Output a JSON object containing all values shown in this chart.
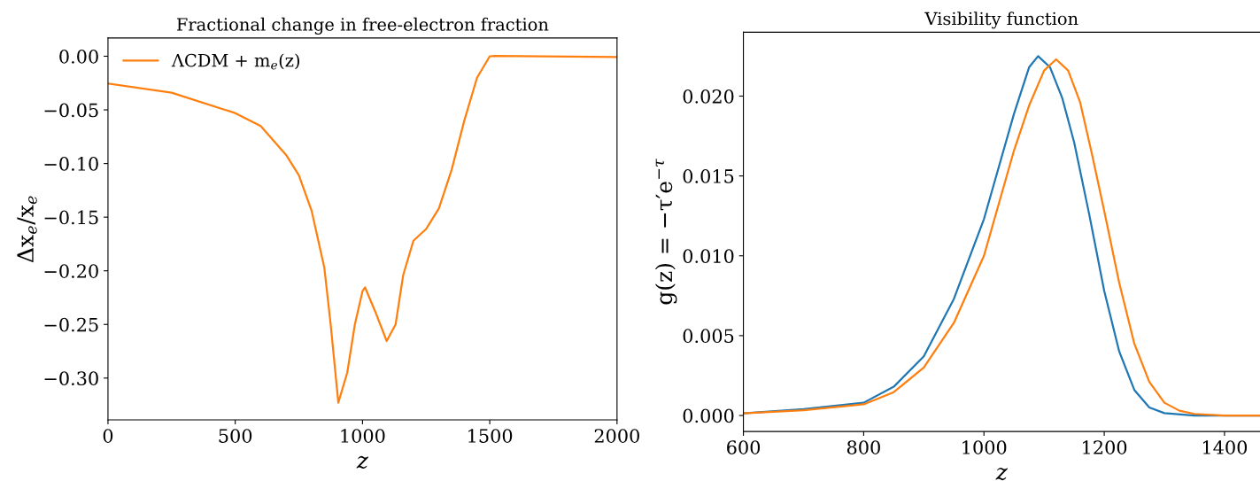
{
  "chart_data": [
    {
      "type": "line",
      "title": "Fractional change in free-electron fraction",
      "xlabel": "z",
      "ylabel": "Δx$_{e}$/x$_{e}$",
      "legend": "top left",
      "xlim": [
        0,
        2000
      ],
      "ylim": [
        -0.339,
        0.017
      ],
      "xticks": [
        0,
        500,
        1000,
        1500,
        2000
      ],
      "yticks": [
        {
          "value": 0,
          "label": "0.00"
        },
        {
          "value": -0.05,
          "label": "−0.05"
        },
        {
          "value": -0.1,
          "label": "−0.10"
        },
        {
          "value": -0.15,
          "label": "−0.15"
        },
        {
          "value": -0.2,
          "label": "−0.20"
        },
        {
          "value": -0.25,
          "label": "−0.25"
        },
        {
          "value": -0.3,
          "label": "−0.30"
        }
      ],
      "x": [
        0,
        250,
        500,
        600,
        700,
        750,
        800,
        850,
        875,
        905,
        940,
        970,
        1000,
        1010,
        1050,
        1095,
        1130,
        1160,
        1200,
        1250,
        1300,
        1350,
        1400,
        1450,
        1500,
        1520,
        2000
      ],
      "series": [
        {
          "name": "ΛCDM + m$_{e}$(z)",
          "color": "#ff7f0e",
          "values": [
            -0.0254,
            -0.034,
            -0.053,
            -0.065,
            -0.092,
            -0.111,
            -0.144,
            -0.197,
            -0.25,
            -0.323,
            -0.295,
            -0.25,
            -0.219,
            -0.2155,
            -0.238,
            -0.2655,
            -0.25,
            -0.204,
            -0.172,
            -0.161,
            -0.142,
            -0.106,
            -0.06,
            -0.02,
            0.0,
            0.0003,
            -0.0008
          ]
        }
      ]
    },
    {
      "type": "line",
      "title": "Visibility function",
      "xlabel": "z",
      "ylabel": "g(z) = −τ′e$^{−τ}$",
      "xlim": [
        600,
        1459
      ],
      "ylim": [
        -0.001,
        0.024
      ],
      "xticks": [
        600,
        800,
        1000,
        1200,
        1400
      ],
      "yticks": [
        {
          "value": 0,
          "label": "0.000"
        },
        {
          "value": 0.005,
          "label": "0.005"
        },
        {
          "value": 0.01,
          "label": "0.010"
        },
        {
          "value": 0.015,
          "label": "0.015"
        },
        {
          "value": 0.02,
          "label": "0.020"
        }
      ],
      "series": [
        {
          "color": "#1f77b4",
          "x": [
            600,
            700,
            800,
            850,
            900,
            950,
            1000,
            1025,
            1050,
            1075,
            1090,
            1110,
            1130,
            1150,
            1175,
            1200,
            1225,
            1250,
            1275,
            1300,
            1350,
            1459
          ],
          "values": [
            0.00013,
            0.0004,
            0.0008,
            0.0018,
            0.0037,
            0.0073,
            0.0123,
            0.0156,
            0.0189,
            0.0218,
            0.0225,
            0.0218,
            0.0199,
            0.0171,
            0.0126,
            0.0078,
            0.004,
            0.0016,
            0.0005,
            0.00015,
            0.0,
            0.0
          ]
        },
        {
          "color": "#ff7f0e",
          "x": [
            600,
            700,
            800,
            850,
            900,
            950,
            1000,
            1025,
            1050,
            1075,
            1100,
            1120,
            1140,
            1160,
            1180,
            1200,
            1225,
            1250,
            1275,
            1300,
            1325,
            1350,
            1400,
            1459
          ],
          "values": [
            0.00013,
            0.00033,
            0.0007,
            0.00146,
            0.003,
            0.0058,
            0.01,
            0.0133,
            0.0166,
            0.0194,
            0.0216,
            0.0223,
            0.0216,
            0.0196,
            0.0163,
            0.0128,
            0.0083,
            0.0045,
            0.0021,
            0.0008,
            0.0003,
            0.0001,
            0.0,
            0.0
          ]
        }
      ]
    }
  ]
}
